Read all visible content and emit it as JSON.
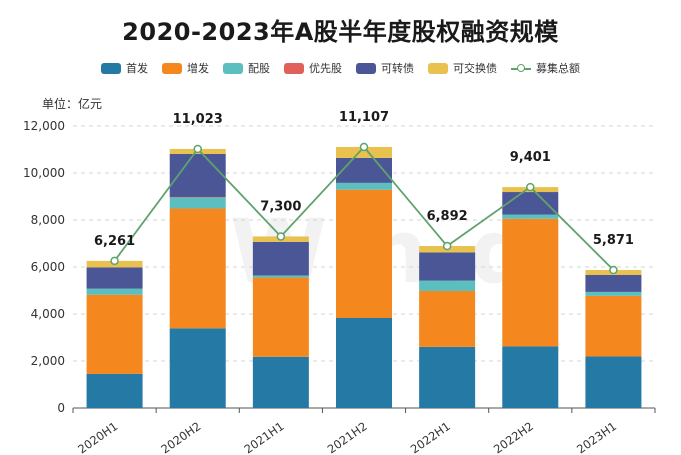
{
  "title": "2020-2023年A股半年度股权融资规模",
  "unit_label": "单位：亿元",
  "watermark": "Win.d",
  "chart_data": {
    "type": "bar",
    "stacked": true,
    "categories": [
      "2020H1",
      "2020H2",
      "2021H1",
      "2021H2",
      "2022H1",
      "2022H2",
      "2023H1"
    ],
    "ylim": [
      0,
      12000
    ],
    "yticks": [
      0,
      2000,
      4000,
      6000,
      8000,
      10000,
      12000
    ],
    "ytick_labels": [
      "0",
      "2,000",
      "4,000",
      "6,000",
      "8,000",
      "10,000",
      "12,000"
    ],
    "grid": true,
    "legend_position": "top",
    "series": [
      {
        "name": "首发",
        "color": "#2479a5",
        "values": [
          1450,
          3390,
          2180,
          3830,
          2600,
          2620,
          2190
        ]
      },
      {
        "name": "增发",
        "color": "#f5871f",
        "values": [
          3370,
          5100,
          3370,
          5460,
          2380,
          5430,
          2580
        ]
      },
      {
        "name": "配股",
        "color": "#5bbfbf",
        "values": [
          260,
          470,
          90,
          290,
          440,
          180,
          170
        ]
      },
      {
        "name": "优先股",
        "color": "#e0615c",
        "values": [
          0,
          20,
          0,
          0,
          0,
          0,
          0
        ]
      },
      {
        "name": "可转债",
        "color": "#4b5697",
        "values": [
          900,
          1830,
          1430,
          1060,
          1200,
          960,
          720
        ]
      },
      {
        "name": "可交换债",
        "color": "#e8c14e",
        "values": [
          281,
          213,
          230,
          467,
          272,
          211,
          211
        ]
      }
    ],
    "total": {
      "name": "募集总额",
      "color": "#5fa36b",
      "type": "line",
      "values": [
        6261,
        11023,
        7300,
        11107,
        6892,
        9401,
        5871
      ],
      "labels": [
        "6,261",
        "11,023",
        "7,300",
        "11,107",
        "6,892",
        "9,401",
        "5,871"
      ]
    }
  }
}
